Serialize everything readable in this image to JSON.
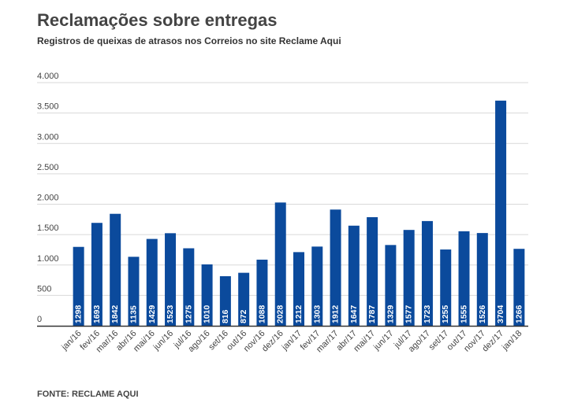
{
  "header": {
    "title": "Reclamações sobre entregas",
    "subtitle": "Registros de queixas de atrasos nos Correios no site Reclame Aqui"
  },
  "footer": {
    "source": "FONTE: RECLAME AQUI"
  },
  "colors": {
    "bar": "#0b4a9c",
    "bar_label": "#ffffff",
    "grid": "#d9d9d9",
    "axis": "#333333",
    "tick_text": "#444444"
  },
  "chart_data": {
    "type": "bar",
    "title": "Reclamações sobre entregas",
    "subtitle": "Registros de queixas de atrasos nos Correios no site Reclame Aqui",
    "xlabel": "",
    "ylabel": "",
    "ylim": [
      0,
      4000
    ],
    "yticks": [
      0,
      500,
      1000,
      1500,
      2000,
      2500,
      3000,
      3500,
      4000
    ],
    "ytick_labels": [
      "0",
      "500",
      "1.000",
      "1.500",
      "2.000",
      "2.500",
      "3.000",
      "3.500",
      "4.000"
    ],
    "grid": true,
    "categories": [
      "jan/16",
      "fev/16",
      "mar/16",
      "abr/16",
      "mai/16",
      "jun/16",
      "jul/16",
      "ago/16",
      "set/16",
      "out/16",
      "nov/16",
      "dez/16",
      "jan/17",
      "fev/17",
      "mar/17",
      "abr/17",
      "mai/17",
      "jun/17",
      "jul/17",
      "ago/17",
      "set/17",
      "out/17",
      "nov/17",
      "dez/17",
      "jan/18"
    ],
    "values": [
      1298,
      1693,
      1842,
      1135,
      1429,
      1523,
      1275,
      1010,
      816,
      872,
      1088,
      2028,
      1212,
      1303,
      1912,
      1647,
      1787,
      1329,
      1577,
      1723,
      1255,
      1555,
      1526,
      3704,
      1266
    ]
  }
}
